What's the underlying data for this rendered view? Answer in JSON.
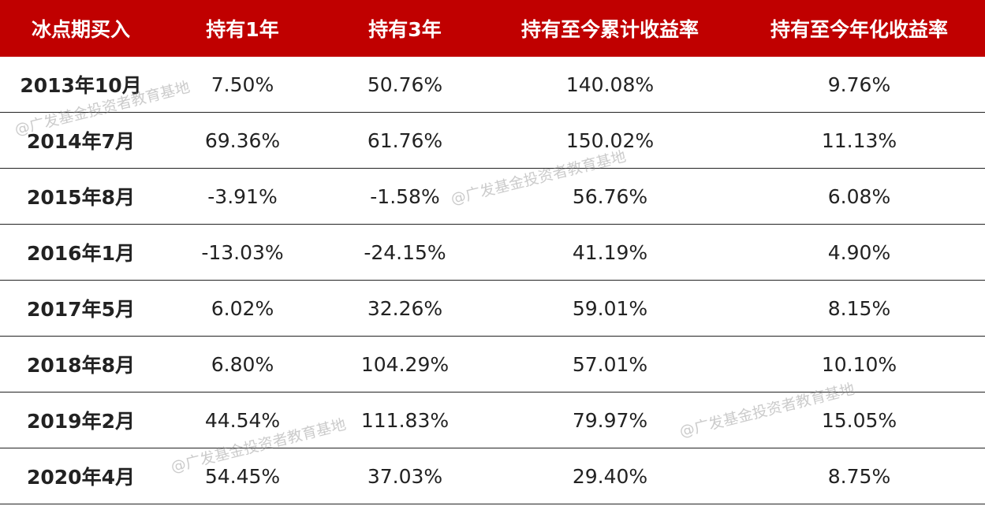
{
  "table": {
    "headers": [
      "冰点期买入",
      "持有1年",
      "持有3年",
      "持有至今累计收益率",
      "持有至今年化收益率"
    ],
    "rows": [
      [
        "2013年10月",
        "7.50%",
        "50.76%",
        "140.08%",
        "9.76%"
      ],
      [
        "2014年7月",
        "69.36%",
        "61.76%",
        "150.02%",
        "11.13%"
      ],
      [
        "2015年8月",
        "-3.91%",
        "-1.58%",
        "56.76%",
        "6.08%"
      ],
      [
        "2016年1月",
        "-13.03%",
        "-24.15%",
        "41.19%",
        "4.90%"
      ],
      [
        "2017年5月",
        "6.02%",
        "32.26%",
        "59.01%",
        "8.15%"
      ],
      [
        "2018年8月",
        "6.80%",
        "104.29%",
        "57.01%",
        "10.10%"
      ],
      [
        "2019年2月",
        "44.54%",
        "111.83%",
        "79.97%",
        "15.05%"
      ],
      [
        "2020年4月",
        "54.45%",
        "37.03%",
        "29.40%",
        "8.75%"
      ]
    ]
  },
  "watermarks": [
    "@广发基金投资者教育基地",
    "@广发基金投资者教育基地",
    "@广发基金投资者教育基地",
    "@广发基金投资者教育基地"
  ]
}
